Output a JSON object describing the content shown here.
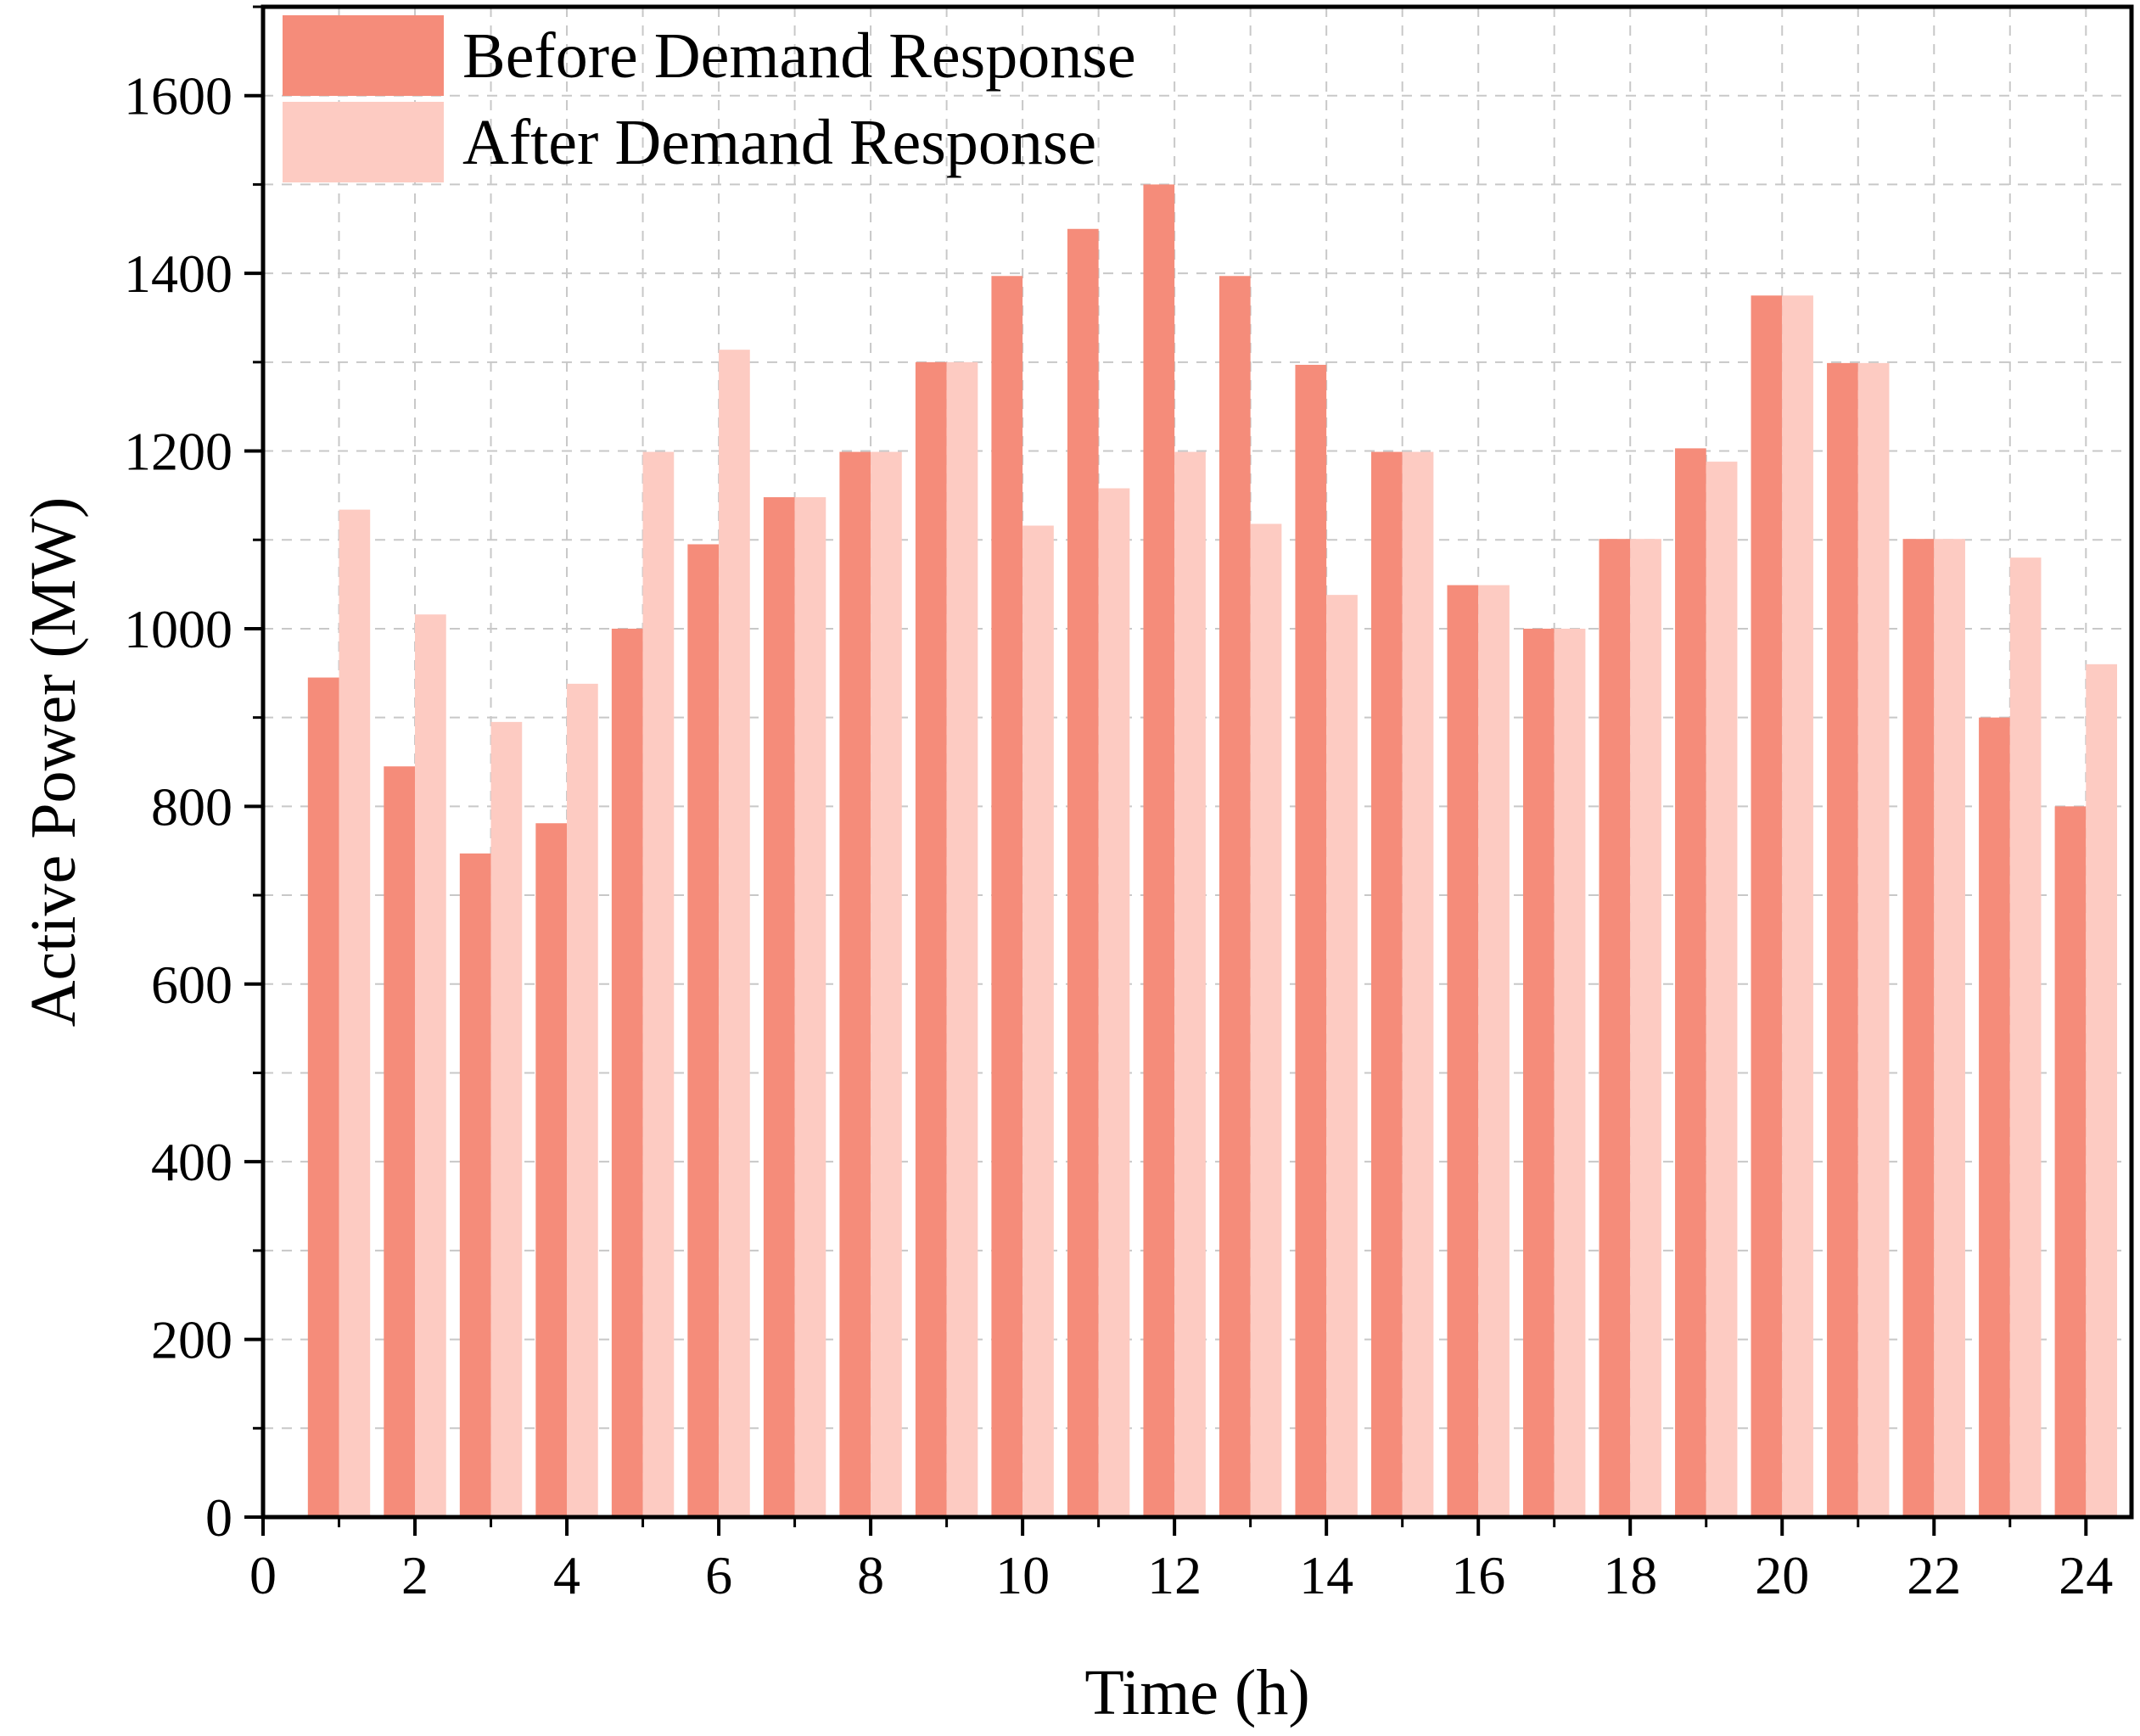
{
  "chart_data": {
    "type": "bar",
    "xlabel": "Time (h)",
    "ylabel": "Active Power (MW)",
    "xlim": [
      0,
      24.6
    ],
    "ylim": [
      0,
      1600
    ],
    "ylim_display_max": 1700,
    "x_ticks": [
      0,
      2,
      4,
      6,
      8,
      10,
      12,
      14,
      16,
      18,
      20,
      22,
      24
    ],
    "y_ticks": [
      0,
      200,
      400,
      600,
      800,
      1000,
      1200,
      1400,
      1600
    ],
    "grid": true,
    "legend_position": "top-left",
    "categories": [
      1,
      2,
      3,
      4,
      5,
      6,
      7,
      8,
      9,
      10,
      11,
      12,
      13,
      14,
      15,
      16,
      17,
      18,
      19,
      20,
      21,
      22,
      23,
      24
    ],
    "series": [
      {
        "name": "Before Demand Response",
        "color": "#f58c7a",
        "values": [
          945,
          845,
          747,
          781,
          1000,
          1095,
          1148,
          1199,
          1300,
          1397,
          1450,
          1500,
          1397,
          1297,
          1199,
          1049,
          1000,
          1101,
          1203,
          1375,
          1299,
          1101,
          900,
          800
        ]
      },
      {
        "name": "After Demand Response",
        "color": "#fdcbc2",
        "values": [
          1134,
          1016,
          895,
          938,
          1199,
          1314,
          1148,
          1199,
          1300,
          1116,
          1158,
          1199,
          1118,
          1038,
          1199,
          1049,
          1000,
          1101,
          1188,
          1375,
          1299,
          1101,
          1080,
          960
        ]
      }
    ]
  }
}
